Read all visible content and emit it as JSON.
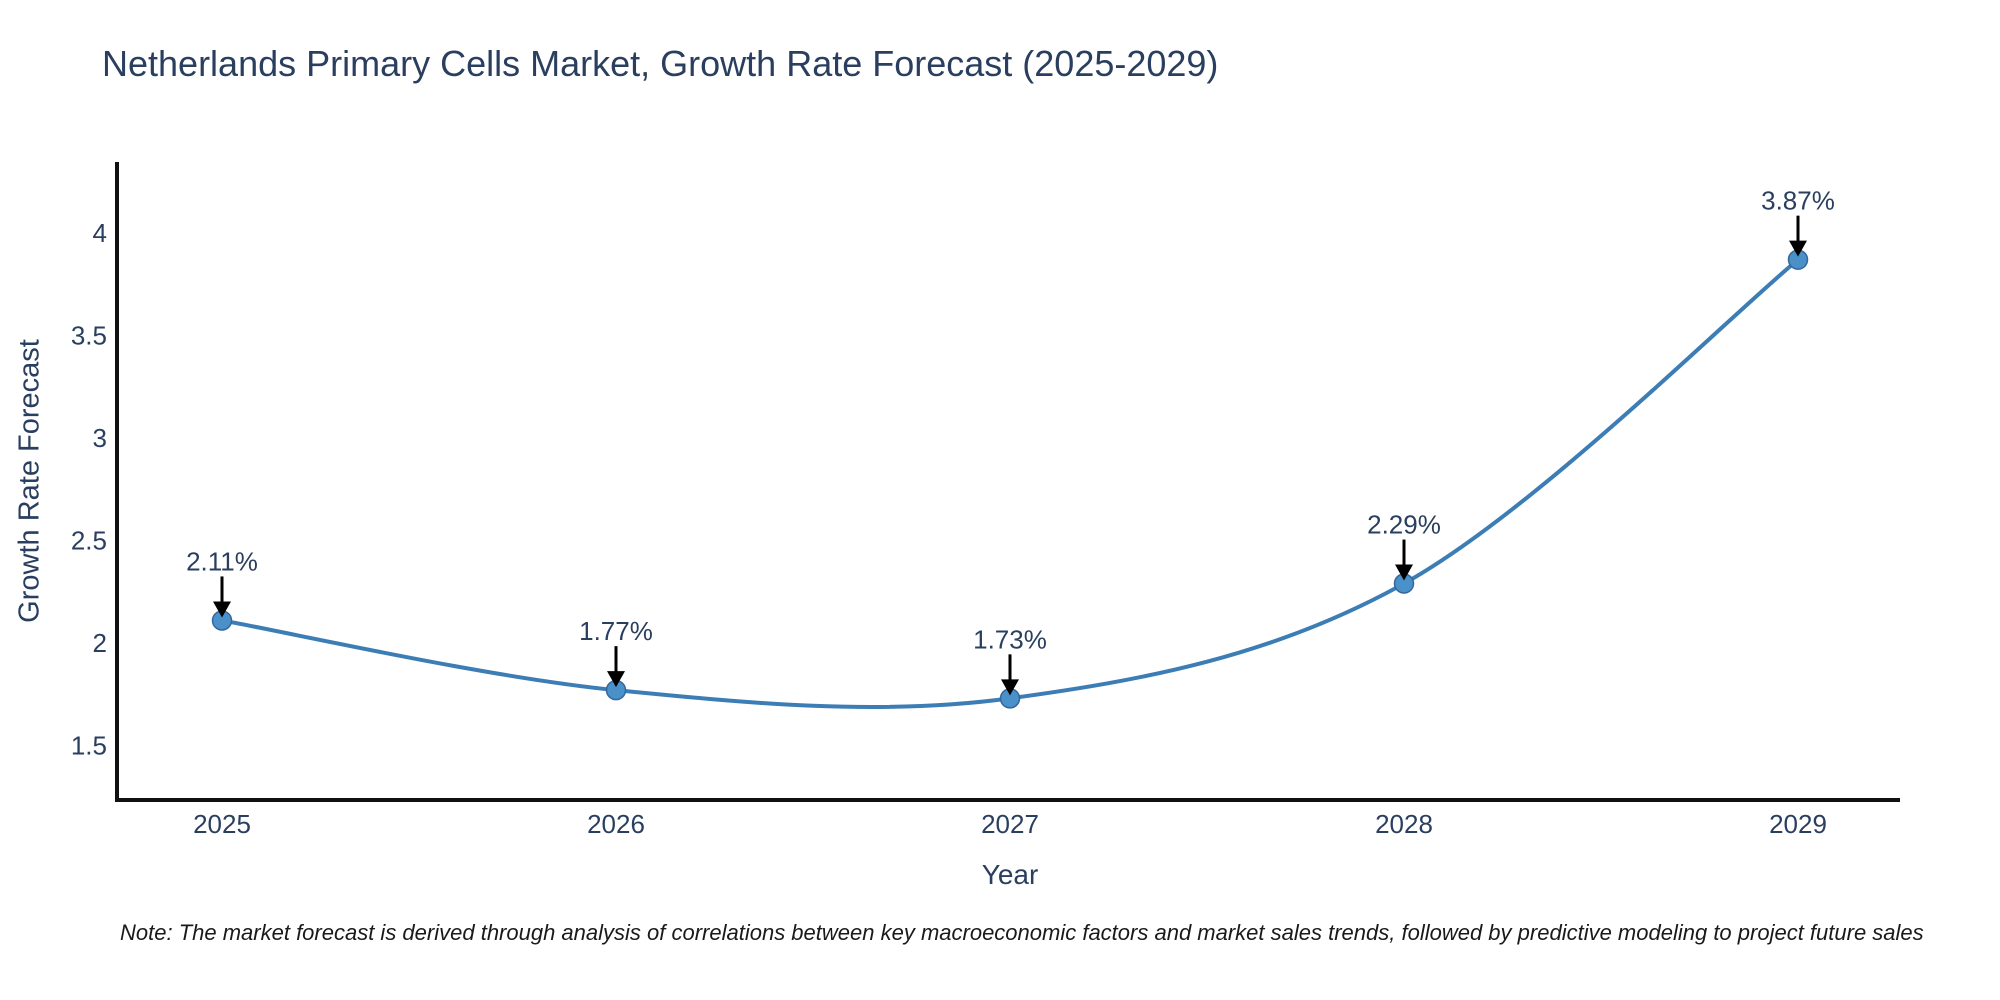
{
  "title": "Netherlands Primary Cells Market, Growth Rate Forecast (2025-2029)",
  "note": "Note: The market forecast is derived through analysis of correlations between key macroeconomic factors and market sales trends, followed by predictive modeling to project future sales",
  "colors": {
    "background": "#ffffff",
    "title_text": "#2a3f5f",
    "axis_text": "#2a3f5f",
    "axis_line": "#111111",
    "line": "#3c7db5",
    "marker": "#4a90c9",
    "marker_border": "#33689b",
    "annotation_text": "#2a3f5f",
    "arrow": "#000000",
    "note_text": "#1a1a1a"
  },
  "chart_data": {
    "type": "line",
    "title": "Netherlands Primary Cells Market, Growth Rate Forecast (2025-2029)",
    "xlabel": "Year",
    "ylabel": "Growth Rate Forecast",
    "x": [
      2025,
      2026,
      2027,
      2028,
      2029
    ],
    "values": [
      2.11,
      1.77,
      1.73,
      2.29,
      3.87
    ],
    "point_labels": [
      "2.11%",
      "1.77%",
      "1.73%",
      "2.29%",
      "3.87%"
    ],
    "x_ticks": [
      2025,
      2026,
      2027,
      2028,
      2029
    ],
    "y_ticks": [
      1.5,
      2,
      2.5,
      3,
      3.5,
      4
    ],
    "xlim": [
      2024.73,
      2029.26
    ],
    "ylim": [
      1.23,
      4.35
    ],
    "line_shape": "spline",
    "markers": true,
    "grid": false,
    "legend": false,
    "annotations_have_arrows": true
  }
}
